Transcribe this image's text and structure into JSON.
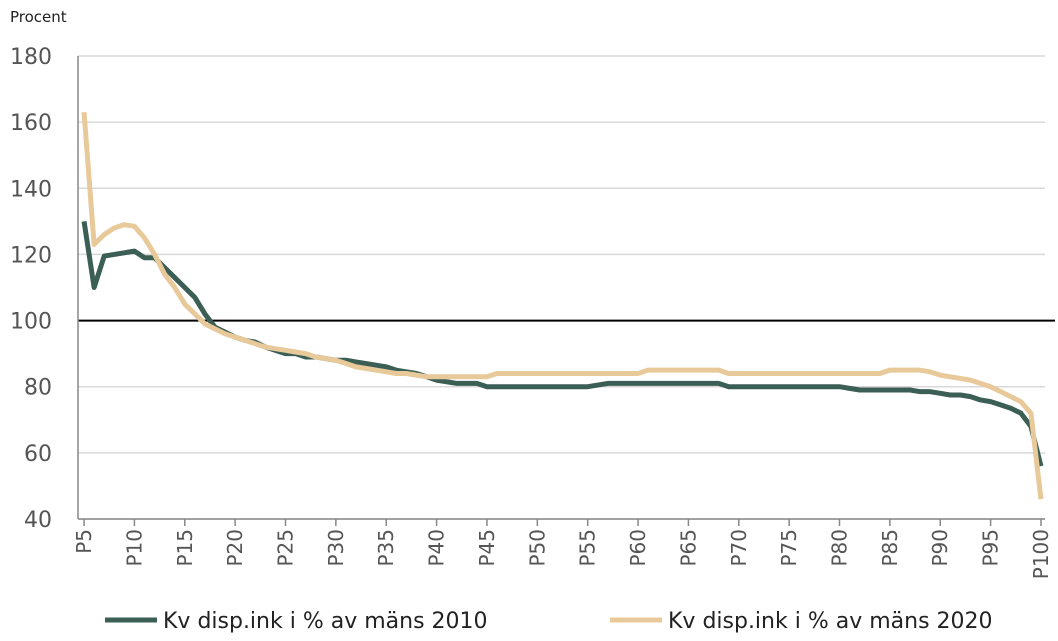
{
  "chart_data": {
    "type": "line",
    "y_label": "Procent",
    "x": [
      5,
      6,
      7,
      8,
      9,
      10,
      11,
      12,
      13,
      14,
      15,
      16,
      17,
      18,
      19,
      20,
      21,
      22,
      23,
      24,
      25,
      26,
      27,
      28,
      29,
      30,
      31,
      32,
      33,
      34,
      35,
      36,
      37,
      38,
      39,
      40,
      41,
      42,
      43,
      44,
      45,
      46,
      47,
      48,
      49,
      50,
      51,
      52,
      53,
      54,
      55,
      56,
      57,
      58,
      59,
      60,
      61,
      62,
      63,
      64,
      65,
      66,
      67,
      68,
      69,
      70,
      71,
      72,
      73,
      74,
      75,
      76,
      77,
      78,
      79,
      80,
      81,
      82,
      83,
      84,
      85,
      86,
      87,
      88,
      89,
      90,
      91,
      92,
      93,
      94,
      95,
      96,
      97,
      98,
      99,
      100
    ],
    "series": [
      {
        "name": "Kv disp.ink i % av mäns 2010",
        "color": "#3b5e55",
        "values": [
          130,
          110,
          119.5,
          120,
          120.5,
          121,
          119,
          119,
          116,
          113,
          110,
          107,
          102,
          98,
          96.5,
          95,
          94,
          93.5,
          92,
          91,
          90,
          90,
          89,
          89,
          88.5,
          88,
          88,
          87.5,
          87,
          86.5,
          86,
          85,
          84.5,
          84,
          83,
          82,
          81.5,
          81,
          81,
          81,
          80,
          80,
          80,
          80,
          80,
          80,
          80,
          80,
          80,
          80,
          80,
          80.5,
          81,
          81,
          81,
          81,
          81,
          81,
          81,
          81,
          81,
          81,
          81,
          81,
          80,
          80,
          80,
          80,
          80,
          80,
          80,
          80,
          80,
          80,
          80,
          80,
          79.5,
          79,
          79,
          79,
          79,
          79,
          79,
          78.5,
          78.5,
          78,
          77.5,
          77.5,
          77,
          76,
          75.5,
          74.5,
          73.5,
          72,
          68,
          56
        ]
      },
      {
        "name": "Kv disp.ink i % av mäns 2020",
        "color": "#e8c99a",
        "values": [
          163,
          123,
          126,
          128,
          129,
          128.5,
          125,
          120,
          114,
          110,
          105,
          102,
          99,
          97.5,
          96,
          95,
          94,
          93,
          92,
          91.5,
          91,
          90.5,
          90,
          89,
          88.5,
          88,
          87,
          86,
          85.5,
          85,
          84.5,
          84,
          84,
          83.5,
          83,
          83,
          83,
          83,
          83,
          83,
          83,
          84,
          84,
          84,
          84,
          84,
          84,
          84,
          84,
          84,
          84,
          84,
          84,
          84,
          84,
          84,
          85,
          85,
          85,
          85,
          85,
          85,
          85,
          85,
          84,
          84,
          84,
          84,
          84,
          84,
          84,
          84,
          84,
          84,
          84,
          84,
          84,
          84,
          84,
          84,
          85,
          85,
          85,
          85,
          84.5,
          83.5,
          83,
          82.5,
          82,
          81,
          80,
          78.5,
          77,
          75.5,
          72,
          46
        ]
      }
    ],
    "xlim": [
      4.4,
      100.4
    ],
    "xticks": [
      {
        "value": 5,
        "label": "P5"
      },
      {
        "value": 10,
        "label": "P10"
      },
      {
        "value": 15,
        "label": "P15"
      },
      {
        "value": 20,
        "label": "P20"
      },
      {
        "value": 25,
        "label": "P25"
      },
      {
        "value": 30,
        "label": "P30"
      },
      {
        "value": 35,
        "label": "P35"
      },
      {
        "value": 40,
        "label": "P40"
      },
      {
        "value": 45,
        "label": "P45"
      },
      {
        "value": 50,
        "label": "P50"
      },
      {
        "value": 55,
        "label": "P55"
      },
      {
        "value": 60,
        "label": "P60"
      },
      {
        "value": 65,
        "label": "P65"
      },
      {
        "value": 70,
        "label": "P70"
      },
      {
        "value": 75,
        "label": "P75"
      },
      {
        "value": 80,
        "label": "P80"
      },
      {
        "value": 85,
        "label": "P85"
      },
      {
        "value": 90,
        "label": "P90"
      },
      {
        "value": 95,
        "label": "P95"
      },
      {
        "value": 100,
        "label": "P100"
      }
    ],
    "ylim": [
      40,
      180
    ],
    "yticks": [
      40,
      60,
      80,
      100,
      120,
      140,
      160,
      180
    ],
    "reference_line": 100,
    "grid": true
  }
}
